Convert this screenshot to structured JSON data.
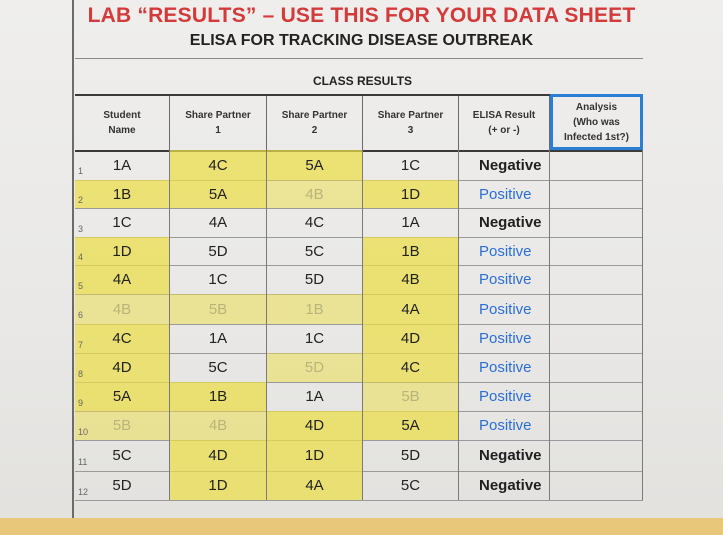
{
  "title": "LAB “RESULTS” – USE THIS FOR YOUR DATA SHEET",
  "subtitle": "ELISA FOR TRACKING DISEASE OUTBREAK",
  "section_label": "CLASS RESULTS",
  "headers": {
    "student": [
      "Student",
      "Name"
    ],
    "p1": [
      "Share Partner",
      "1"
    ],
    "p2": [
      "Share Partner",
      "2"
    ],
    "p3": [
      "Share Partner",
      "3"
    ],
    "result": [
      "ELISA Result",
      "(+ or -)"
    ],
    "analysis": [
      "Analysis",
      "(Who was",
      "Infected 1st?)"
    ]
  },
  "rows": [
    {
      "num": "1",
      "student": "1A",
      "p1": "4C",
      "p2": "5A",
      "p3": "1C",
      "result": "Negative"
    },
    {
      "num": "2",
      "student": "1B",
      "p1": "5A",
      "p2": "4B",
      "p3": "1D",
      "result": "Positive"
    },
    {
      "num": "3",
      "student": "1C",
      "p1": "4A",
      "p2": "4C",
      "p3": "1A",
      "result": "Negative"
    },
    {
      "num": "4",
      "student": "1D",
      "p1": "5D",
      "p2": "5C",
      "p3": "1B",
      "result": "Positive"
    },
    {
      "num": "5",
      "student": "4A",
      "p1": "1C",
      "p2": "5D",
      "p3": "4B",
      "result": "Positive"
    },
    {
      "num": "6",
      "student": "4B",
      "p1": "5B",
      "p2": "1B",
      "p3": "4A",
      "result": "Positive"
    },
    {
      "num": "7",
      "student": "4C",
      "p1": "1A",
      "p2": "1C",
      "p3": "4D",
      "result": "Positive"
    },
    {
      "num": "8",
      "student": "4D",
      "p1": "5C",
      "p2": "5D",
      "p3": "4C",
      "result": "Positive"
    },
    {
      "num": "9",
      "student": "5A",
      "p1": "1B",
      "p2": "1A",
      "p3": "5B",
      "result": "Positive"
    },
    {
      "num": "10",
      "student": "5B",
      "p1": "4B",
      "p2": "4D",
      "p3": "5A",
      "result": "Positive"
    },
    {
      "num": "11",
      "student": "5C",
      "p1": "4D",
      "p2": "1D",
      "p3": "5D",
      "result": "Negative"
    },
    {
      "num": "12",
      "student": "5D",
      "p1": "1D",
      "p2": "4A",
      "p3": "5C",
      "result": "Negative"
    }
  ],
  "colors": {
    "title_red": "#d33a3a",
    "positive_blue": "#2a6fd6",
    "analysis_border": "#2a7fd4",
    "highlighter_yellow": "#ecde46"
  }
}
